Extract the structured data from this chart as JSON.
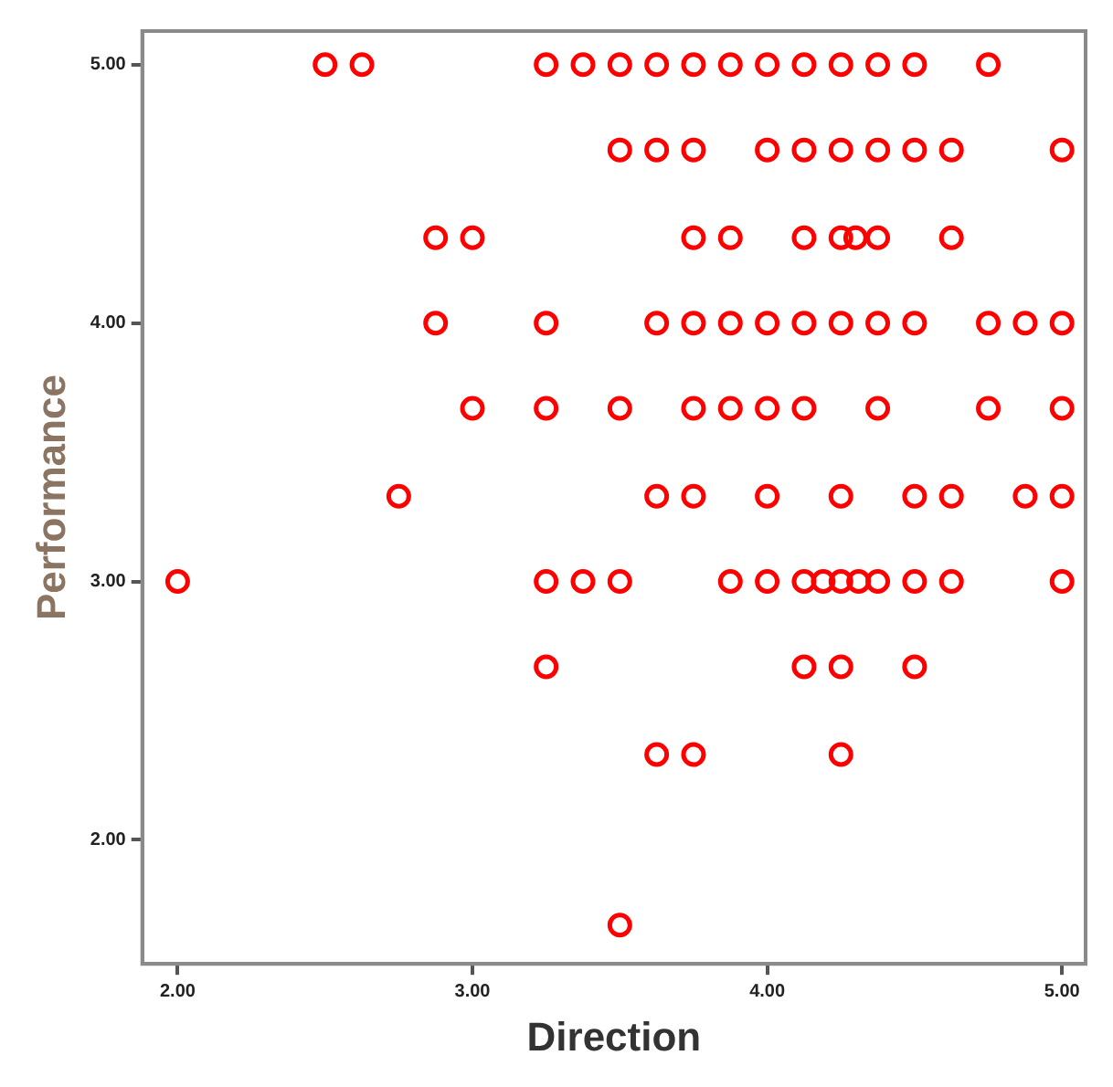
{
  "chart_data": {
    "type": "scatter",
    "xlabel": "Direction",
    "ylabel": "Performance",
    "marker": "circle",
    "xlim": [
      1.88,
      5.08
    ],
    "ylim": [
      1.52,
      5.13
    ],
    "xticks": [
      {
        "value": 2,
        "label": "2.00"
      },
      {
        "value": 3,
        "label": "3.00"
      },
      {
        "value": 4,
        "label": "4.00"
      },
      {
        "value": 5,
        "label": "5.00"
      }
    ],
    "yticks": [
      {
        "value": 2,
        "label": "2.00"
      },
      {
        "value": 3,
        "label": "3.00"
      },
      {
        "value": 4,
        "label": "4.00"
      },
      {
        "value": 5,
        "label": "5.00"
      }
    ],
    "series": [
      {
        "color": "#ff0000",
        "x": [
          2.5,
          2.625,
          3.25,
          3.375,
          3.5,
          3.625,
          3.75,
          3.875,
          4.0,
          4.125,
          4.25,
          4.375,
          4.5,
          4.75,
          3.5,
          3.625,
          3.75,
          4.0,
          4.125,
          4.25,
          4.375,
          4.5,
          4.625,
          5.0,
          2.875,
          3.0,
          3.75,
          3.875,
          4.125,
          4.25,
          4.3,
          4.375,
          4.625,
          2.875,
          3.25,
          3.625,
          3.75,
          3.875,
          4.0,
          4.125,
          4.25,
          4.375,
          4.5,
          4.75,
          4.875,
          5.0,
          3.0,
          3.25,
          3.5,
          3.75,
          3.875,
          4.0,
          4.125,
          4.375,
          4.75,
          5.0,
          2.75,
          3.625,
          3.75,
          4.0,
          4.25,
          4.5,
          4.625,
          4.875,
          5.0,
          2.0,
          3.25,
          3.375,
          3.5,
          3.875,
          4.0,
          4.125,
          4.19,
          4.25,
          4.31,
          4.375,
          4.5,
          4.625,
          5.0,
          3.25,
          4.125,
          4.25,
          4.5,
          3.625,
          3.75,
          4.25,
          3.5
        ],
        "values": [
          5,
          5,
          5,
          5,
          5,
          5,
          5,
          5,
          5,
          5,
          5,
          5,
          5,
          5,
          4.67,
          4.67,
          4.67,
          4.67,
          4.67,
          4.67,
          4.67,
          4.67,
          4.67,
          4.67,
          4.33,
          4.33,
          4.33,
          4.33,
          4.33,
          4.33,
          4.33,
          4.33,
          4.33,
          4,
          4,
          4,
          4,
          4,
          4,
          4,
          4,
          4,
          4,
          4,
          4,
          4,
          3.67,
          3.67,
          3.67,
          3.67,
          3.67,
          3.67,
          3.67,
          3.67,
          3.67,
          3.67,
          3.33,
          3.33,
          3.33,
          3.33,
          3.33,
          3.33,
          3.33,
          3.33,
          3.33,
          3,
          3,
          3,
          3,
          3,
          3,
          3,
          3,
          3,
          3,
          3,
          3,
          3,
          3,
          2.67,
          2.67,
          2.67,
          2.67,
          2.33,
          2.33,
          2.33,
          1.67
        ]
      }
    ]
  }
}
